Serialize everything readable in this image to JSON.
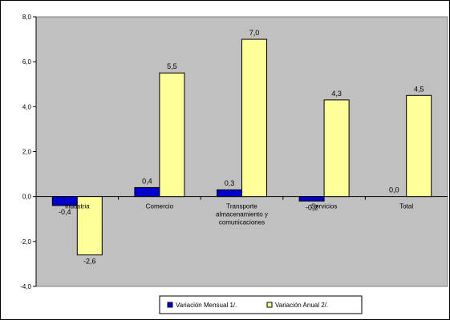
{
  "chart_data": {
    "type": "bar",
    "title": "",
    "xlabel": "",
    "ylabel": "",
    "ylim": [
      -4.0,
      8.0
    ],
    "yticks": [
      "8,0",
      "6,0",
      "4,0",
      "2,0",
      "0,0",
      "-2,0",
      "-4,0"
    ],
    "ytick_values": [
      8,
      6,
      4,
      2,
      0,
      -2,
      -4
    ],
    "categories": [
      [
        "Industria"
      ],
      [
        "Comercio"
      ],
      [
        "Transporte",
        "almacenamiento y",
        "comunicaciones"
      ],
      [
        "Servicios"
      ],
      [
        "Total"
      ]
    ],
    "series": [
      {
        "name": "Variación Mensual 1/.",
        "color": "#0000cc",
        "values": [
          -0.4,
          0.4,
          0.3,
          -0.2,
          0.0
        ],
        "labels": [
          "-0,4",
          "0,4",
          "0,3",
          "-0,2",
          "0,0"
        ]
      },
      {
        "name": "Variación Anual 2/.",
        "color": "#ffff99",
        "values": [
          -2.6,
          5.5,
          7.0,
          4.3,
          4.5
        ],
        "labels": [
          "-2,6",
          "5,5",
          "7,0",
          "4,3",
          "4,5"
        ]
      }
    ],
    "grid": false,
    "legend": "bottom",
    "plot_background": "#c0c0c0"
  }
}
